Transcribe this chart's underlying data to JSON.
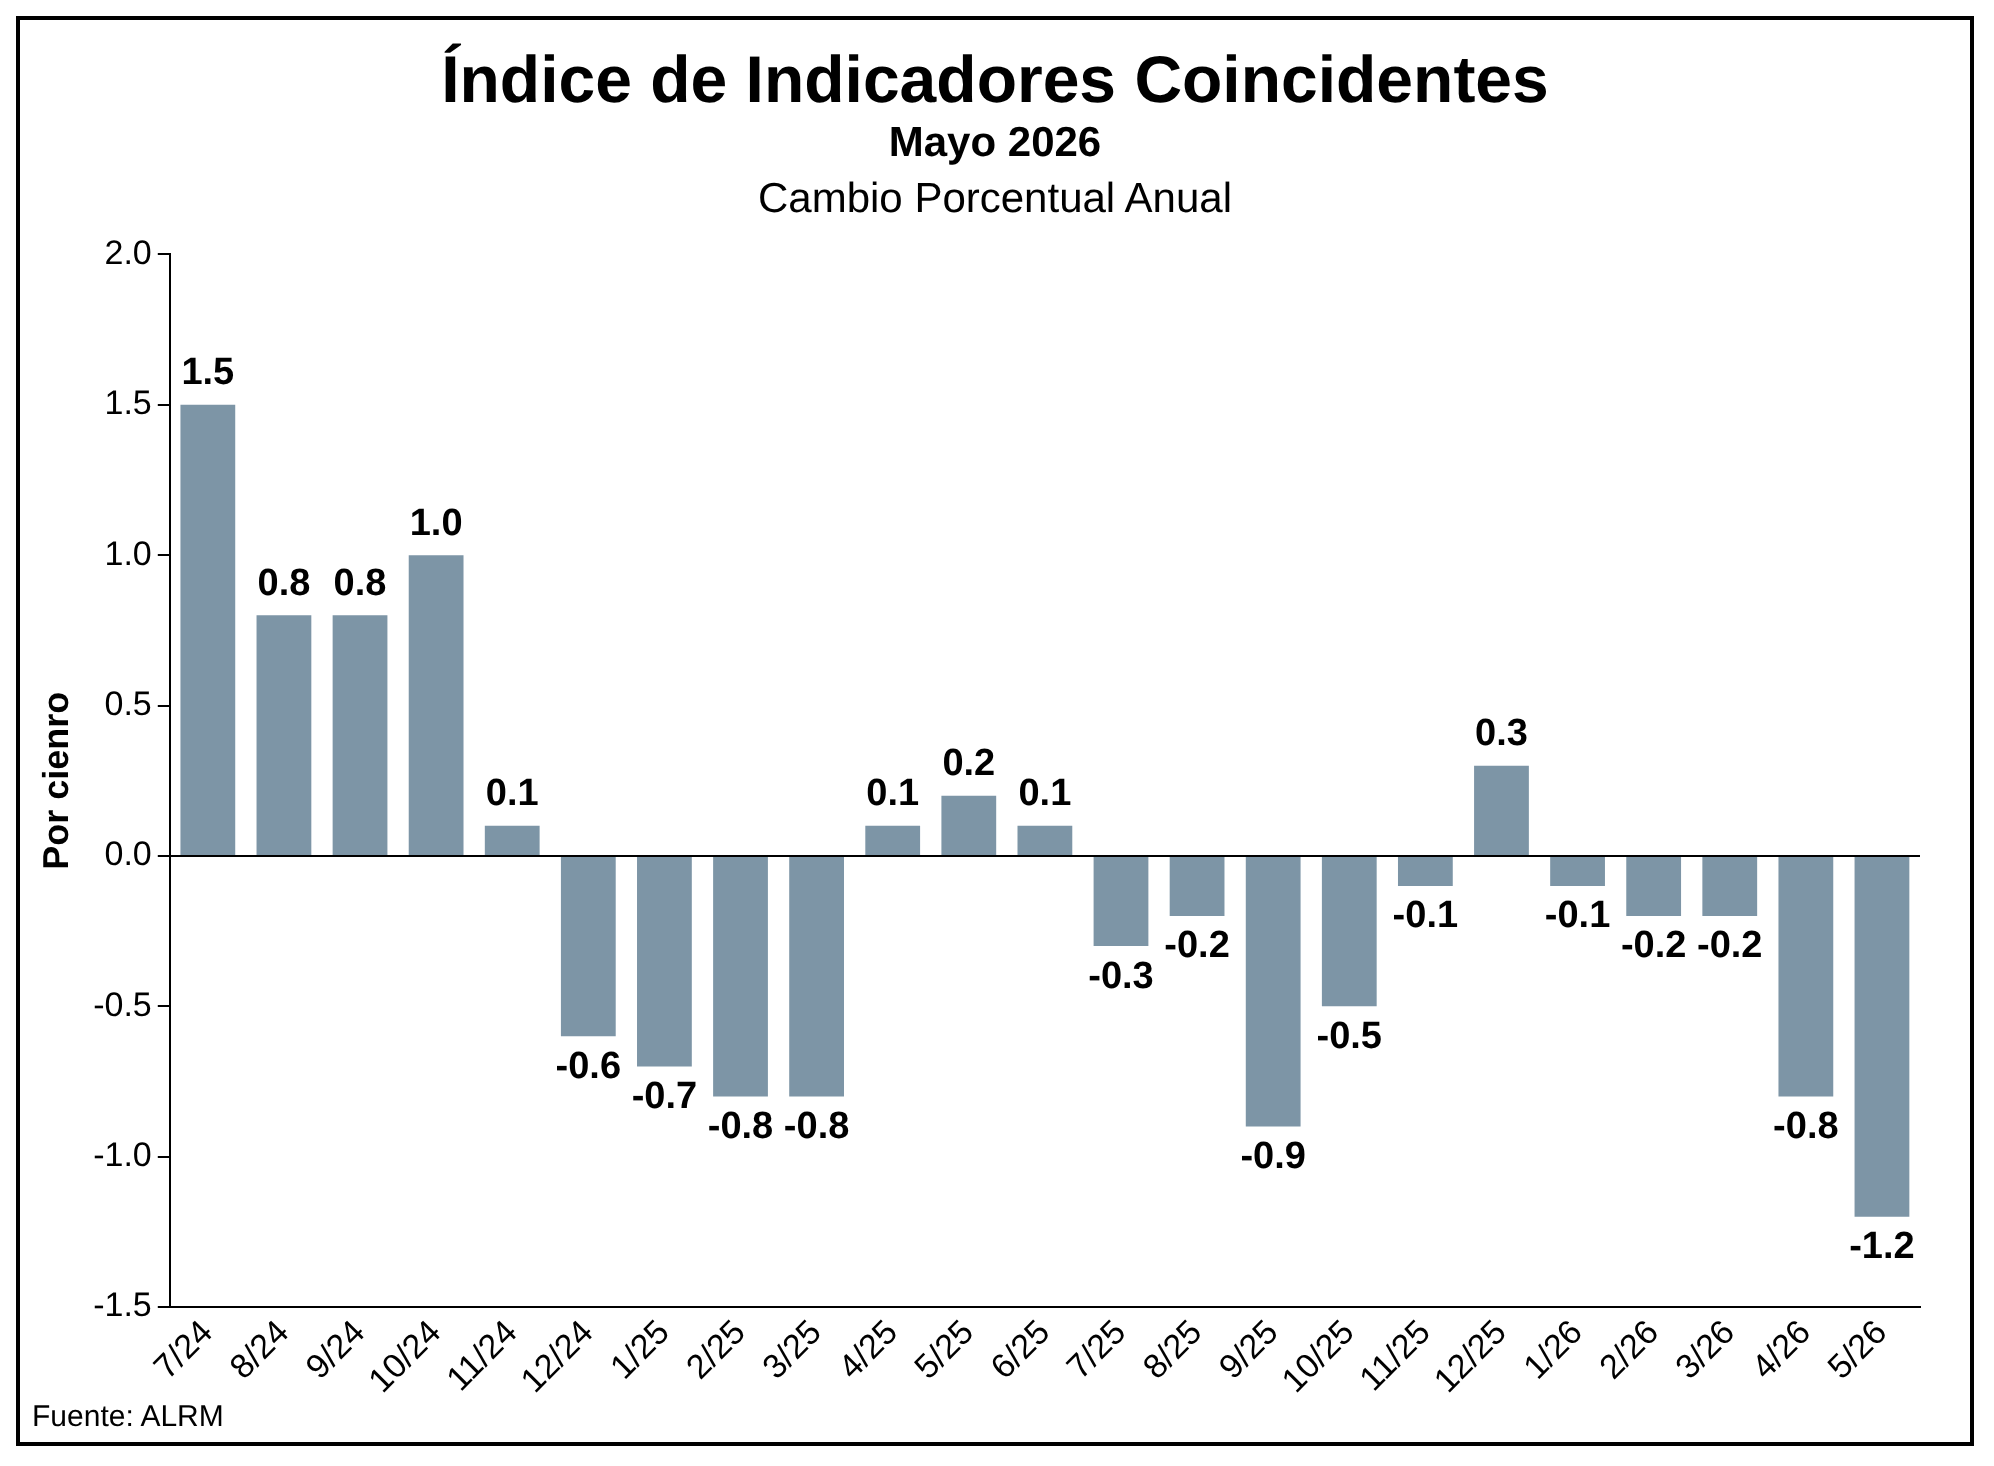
{
  "chart_data": {
    "type": "bar",
    "title": "Índice de Indicadores Coincidentes",
    "subtitle": "Mayo 2026",
    "ylabel": "Por cienro",
    "annotations": [
      "Cambio Porcentual Anual",
      "Fuente: ALRM"
    ],
    "categories": [
      "7/24",
      "8/24",
      "9/24",
      "10/24",
      "11/24",
      "12/24",
      "1/25",
      "2/25",
      "3/25",
      "4/25",
      "5/25",
      "6/25",
      "7/25",
      "8/25",
      "9/25",
      "10/25",
      "11/25",
      "12/25",
      "1/26",
      "2/26",
      "3/26",
      "4/26",
      "5/26"
    ],
    "values": [
      1.5,
      0.8,
      0.8,
      1.0,
      0.1,
      -0.6,
      -0.7,
      -0.8,
      -0.8,
      0.1,
      0.2,
      0.1,
      -0.3,
      -0.2,
      -0.9,
      -0.5,
      -0.1,
      0.3,
      -0.1,
      -0.2,
      -0.2,
      -0.8,
      -1.2
    ],
    "color": "#7d95a6",
    "value_labels": [
      "1.5",
      "0.8",
      "0.8",
      "1.0",
      "0.1",
      "-0.6",
      "-0.7",
      "-0.8",
      "-0.8",
      "0.1",
      "0.2",
      "0.1",
      "-0.3",
      "-0.2",
      "-0.9",
      "-0.5",
      "-0.1",
      "0.3",
      "-0.1",
      "-0.2",
      "-0.2",
      "-0.8",
      "-1.2"
    ],
    "ylim": [
      -1.5,
      2.0
    ],
    "yticks": [
      {
        "value": -1.5,
        "label": "-1.5"
      },
      {
        "value": -1,
        "label": "-1.0"
      },
      {
        "value": -0.5,
        "label": "-0.5"
      },
      {
        "value": 0,
        "label": "0.0"
      },
      {
        "value": 0.5,
        "label": "0.5"
      },
      {
        "value": 1,
        "label": "1.0"
      },
      {
        "value": 1.5,
        "label": "1.5"
      },
      {
        "value": 2,
        "label": "2.0"
      }
    ],
    "legend": false
  }
}
